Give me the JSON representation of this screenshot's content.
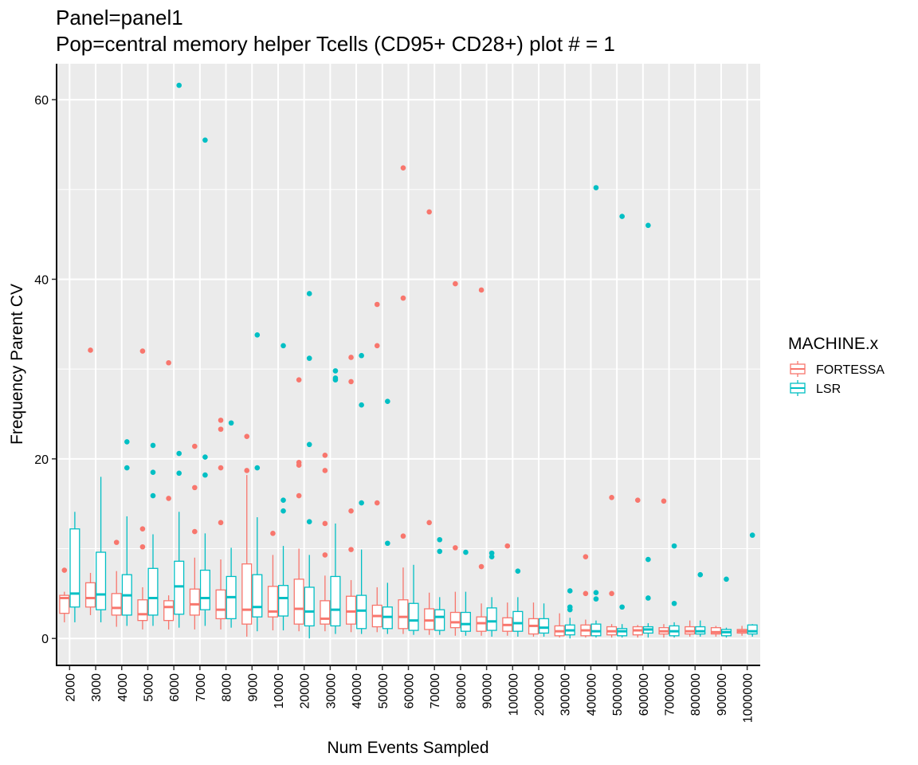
{
  "chart_data": {
    "type": "boxplot",
    "title": "Panel=panel1",
    "subtitle": "Pop=central memory helper Tcells (CD95+ CD28+) plot # = 1",
    "xlabel": "Num Events Sampled",
    "ylabel": "Frequency Parent CV",
    "ylim": [
      -3,
      64
    ],
    "yticks": [
      0,
      20,
      40,
      60
    ],
    "grid": true,
    "legend": {
      "title": "MACHINE.x",
      "position": "right"
    },
    "categories": [
      "2000",
      "3000",
      "4000",
      "5000",
      "6000",
      "7000",
      "8000",
      "9000",
      "10000",
      "20000",
      "30000",
      "40000",
      "50000",
      "60000",
      "70000",
      "80000",
      "90000",
      "100000",
      "200000",
      "300000",
      "400000",
      "500000",
      "600000",
      "700000",
      "800000",
      "900000",
      "1000000"
    ],
    "series": [
      {
        "name": "FORTESSA",
        "color": "#F8766D",
        "boxes": [
          {
            "lo": 1.8,
            "q1": 2.8,
            "med": 4.5,
            "q3": 4.8,
            "hi": 5.2,
            "out": [
              7.6
            ]
          },
          {
            "lo": 2.6,
            "q1": 3.5,
            "med": 4.5,
            "q3": 6.2,
            "hi": 7.3,
            "out": [
              32.1
            ]
          },
          {
            "lo": 1.3,
            "q1": 2.6,
            "med": 3.4,
            "q3": 5.0,
            "hi": 7.5,
            "out": [
              10.7
            ]
          },
          {
            "lo": 1.0,
            "q1": 2.0,
            "med": 2.7,
            "q3": 4.3,
            "hi": 5.7,
            "out": [
              12.2,
              10.2,
              32.0
            ]
          },
          {
            "lo": 1.0,
            "q1": 2.0,
            "med": 3.5,
            "q3": 4.2,
            "hi": 4.8,
            "out": [
              15.6,
              30.7
            ]
          },
          {
            "lo": 1.0,
            "q1": 2.6,
            "med": 3.8,
            "q3": 5.5,
            "hi": 9.0,
            "out": [
              11.9,
              16.8,
              21.4
            ]
          },
          {
            "lo": 1.0,
            "q1": 2.2,
            "med": 3.2,
            "q3": 5.4,
            "hi": 8.8,
            "out": [
              12.9,
              19.0,
              23.3,
              24.3
            ]
          },
          {
            "lo": 0.2,
            "q1": 1.6,
            "med": 3.2,
            "q3": 8.3,
            "hi": 18.2,
            "out": [
              18.7,
              22.5
            ]
          },
          {
            "lo": 0.9,
            "q1": 2.4,
            "med": 3.0,
            "q3": 5.8,
            "hi": 9.3,
            "out": [
              11.7
            ]
          },
          {
            "lo": 0.8,
            "q1": 1.6,
            "med": 3.3,
            "q3": 6.6,
            "hi": 10.0,
            "out": [
              15.9,
              19.3,
              19.6,
              28.8
            ]
          },
          {
            "lo": 0.8,
            "q1": 1.6,
            "med": 2.2,
            "q3": 4.2,
            "hi": 7.0,
            "out": [
              9.3,
              12.8,
              18.7,
              20.4
            ]
          },
          {
            "lo": 0.7,
            "q1": 1.6,
            "med": 3.0,
            "q3": 4.7,
            "hi": 6.5,
            "out": [
              9.9,
              14.2,
              28.6,
              31.3
            ]
          },
          {
            "lo": 0.7,
            "q1": 1.3,
            "med": 2.5,
            "q3": 3.7,
            "hi": 5.7,
            "out": [
              15.1,
              32.6,
              37.2
            ]
          },
          {
            "lo": 0.5,
            "q1": 1.1,
            "med": 2.4,
            "q3": 4.3,
            "hi": 7.9,
            "out": [
              11.4,
              37.9,
              52.4
            ]
          },
          {
            "lo": 0.4,
            "q1": 1.0,
            "med": 2.0,
            "q3": 3.3,
            "hi": 5.1,
            "out": [
              12.9,
              47.5
            ]
          },
          {
            "lo": 0.3,
            "q1": 1.2,
            "med": 1.8,
            "q3": 2.9,
            "hi": 5.2,
            "out": [
              10.1,
              39.5
            ]
          },
          {
            "lo": 0.3,
            "q1": 0.8,
            "med": 1.7,
            "q3": 2.4,
            "hi": 3.9,
            "out": [
              8.0,
              38.8
            ]
          },
          {
            "lo": 0.3,
            "q1": 0.8,
            "med": 1.5,
            "q3": 2.3,
            "hi": 4.0,
            "out": [
              10.3
            ]
          },
          {
            "lo": 0.2,
            "q1": 0.5,
            "med": 1.4,
            "q3": 2.2,
            "hi": 4.0,
            "out": []
          },
          {
            "lo": 0.1,
            "q1": 0.3,
            "med": 0.8,
            "q3": 1.4,
            "hi": 2.8,
            "out": []
          },
          {
            "lo": 0.1,
            "q1": 0.3,
            "med": 0.9,
            "q3": 1.5,
            "hi": 2.1,
            "out": [
              5.0,
              9.1
            ]
          },
          {
            "lo": 0.1,
            "q1": 0.4,
            "med": 0.8,
            "q3": 1.3,
            "hi": 1.6,
            "out": [
              5.0,
              15.7
            ]
          },
          {
            "lo": 0.1,
            "q1": 0.4,
            "med": 0.9,
            "q3": 1.3,
            "hi": 1.5,
            "out": [
              15.4
            ]
          },
          {
            "lo": 0.1,
            "q1": 0.5,
            "med": 0.8,
            "q3": 1.2,
            "hi": 1.6,
            "out": [
              15.3
            ]
          },
          {
            "lo": 0.2,
            "q1": 0.5,
            "med": 0.8,
            "q3": 1.3,
            "hi": 2.0,
            "out": []
          },
          {
            "lo": 0.2,
            "q1": 0.5,
            "med": 0.7,
            "q3": 1.2,
            "hi": 1.4,
            "out": []
          },
          {
            "lo": 0.3,
            "q1": 0.6,
            "med": 0.8,
            "q3": 1.0,
            "hi": 1.4,
            "out": []
          }
        ]
      },
      {
        "name": "LSR",
        "color": "#00BFC4",
        "boxes": [
          {
            "lo": 1.8,
            "q1": 3.5,
            "med": 5.0,
            "q3": 12.2,
            "hi": 14.1,
            "out": []
          },
          {
            "lo": 1.8,
            "q1": 3.2,
            "med": 4.9,
            "q3": 9.6,
            "hi": 18.0,
            "out": []
          },
          {
            "lo": 1.4,
            "q1": 2.6,
            "med": 4.8,
            "q3": 7.1,
            "hi": 13.6,
            "out": [
              19.0,
              21.9
            ]
          },
          {
            "lo": 1.4,
            "q1": 2.6,
            "med": 4.5,
            "q3": 7.8,
            "hi": 11.6,
            "out": [
              15.9,
              18.5,
              21.5
            ]
          },
          {
            "lo": 1.2,
            "q1": 2.7,
            "med": 5.8,
            "q3": 8.6,
            "hi": 14.1,
            "out": [
              18.4,
              20.6,
              61.6
            ]
          },
          {
            "lo": 1.4,
            "q1": 3.2,
            "med": 4.5,
            "q3": 7.6,
            "hi": 11.7,
            "out": [
              18.2,
              20.2,
              55.5
            ]
          },
          {
            "lo": 1.2,
            "q1": 2.2,
            "med": 4.6,
            "q3": 6.9,
            "hi": 10.1,
            "out": [
              24.0
            ]
          },
          {
            "lo": 0.8,
            "q1": 2.4,
            "med": 3.5,
            "q3": 7.1,
            "hi": 13.5,
            "out": [
              19.0,
              33.8
            ]
          },
          {
            "lo": 0.9,
            "q1": 2.5,
            "med": 4.5,
            "q3": 5.9,
            "hi": 10.3,
            "out": [
              14.2,
              15.4,
              32.6
            ]
          },
          {
            "lo": 0.0,
            "q1": 1.4,
            "med": 3.0,
            "q3": 5.7,
            "hi": 9.3,
            "out": [
              13.0,
              21.6,
              31.2,
              38.4
            ]
          },
          {
            "lo": 0.5,
            "q1": 1.4,
            "med": 3.2,
            "q3": 6.9,
            "hi": 12.8,
            "out": [
              28.8,
              29.0,
              29.8
            ]
          },
          {
            "lo": 0.5,
            "q1": 1.1,
            "med": 3.1,
            "q3": 4.8,
            "hi": 9.9,
            "out": [
              15.1,
              26.0,
              31.5
            ]
          },
          {
            "lo": 0.5,
            "q1": 1.1,
            "med": 2.4,
            "q3": 3.5,
            "hi": 6.2,
            "out": [
              10.6,
              26.4
            ]
          },
          {
            "lo": 0.4,
            "q1": 0.9,
            "med": 2.0,
            "q3": 3.9,
            "hi": 8.2,
            "out": []
          },
          {
            "lo": 0.4,
            "q1": 0.9,
            "med": 2.4,
            "q3": 3.2,
            "hi": 4.6,
            "out": [
              9.7,
              11.0
            ]
          },
          {
            "lo": 0.3,
            "q1": 0.8,
            "med": 1.6,
            "q3": 2.9,
            "hi": 5.2,
            "out": [
              9.6
            ]
          },
          {
            "lo": 0.2,
            "q1": 0.9,
            "med": 1.9,
            "q3": 3.4,
            "hi": 4.6,
            "out": [
              9.1,
              9.5
            ]
          },
          {
            "lo": 0.2,
            "q1": 0.8,
            "med": 1.7,
            "q3": 3.0,
            "hi": 4.6,
            "out": [
              7.5
            ]
          },
          {
            "lo": 0.2,
            "q1": 0.6,
            "med": 1.2,
            "q3": 2.2,
            "hi": 3.9,
            "out": []
          },
          {
            "lo": 0.0,
            "q1": 0.4,
            "med": 0.9,
            "q3": 1.5,
            "hi": 2.3,
            "out": [
              3.2,
              3.5,
              5.3
            ]
          },
          {
            "lo": 0.1,
            "q1": 0.3,
            "med": 0.8,
            "q3": 1.6,
            "hi": 2.0,
            "out": [
              4.4,
              5.1,
              50.2
            ]
          },
          {
            "lo": 0.1,
            "q1": 0.3,
            "med": 0.8,
            "q3": 1.1,
            "hi": 1.6,
            "out": [
              3.5,
              47.0
            ]
          },
          {
            "lo": 0.1,
            "q1": 0.6,
            "med": 1.0,
            "q3": 1.3,
            "hi": 1.7,
            "out": [
              4.5,
              8.8,
              46.0
            ]
          },
          {
            "lo": 0.1,
            "q1": 0.3,
            "med": 0.8,
            "q3": 1.4,
            "hi": 1.8,
            "out": [
              3.9,
              10.3
            ]
          },
          {
            "lo": 0.2,
            "q1": 0.5,
            "med": 0.8,
            "q3": 1.3,
            "hi": 2.0,
            "out": [
              7.1
            ]
          },
          {
            "lo": 0.1,
            "q1": 0.3,
            "med": 0.7,
            "q3": 1.0,
            "hi": 1.2,
            "out": [
              6.6
            ]
          },
          {
            "lo": 0.2,
            "q1": 0.5,
            "med": 0.8,
            "q3": 1.5,
            "hi": 1.6,
            "out": [
              11.5
            ]
          }
        ]
      }
    ]
  }
}
